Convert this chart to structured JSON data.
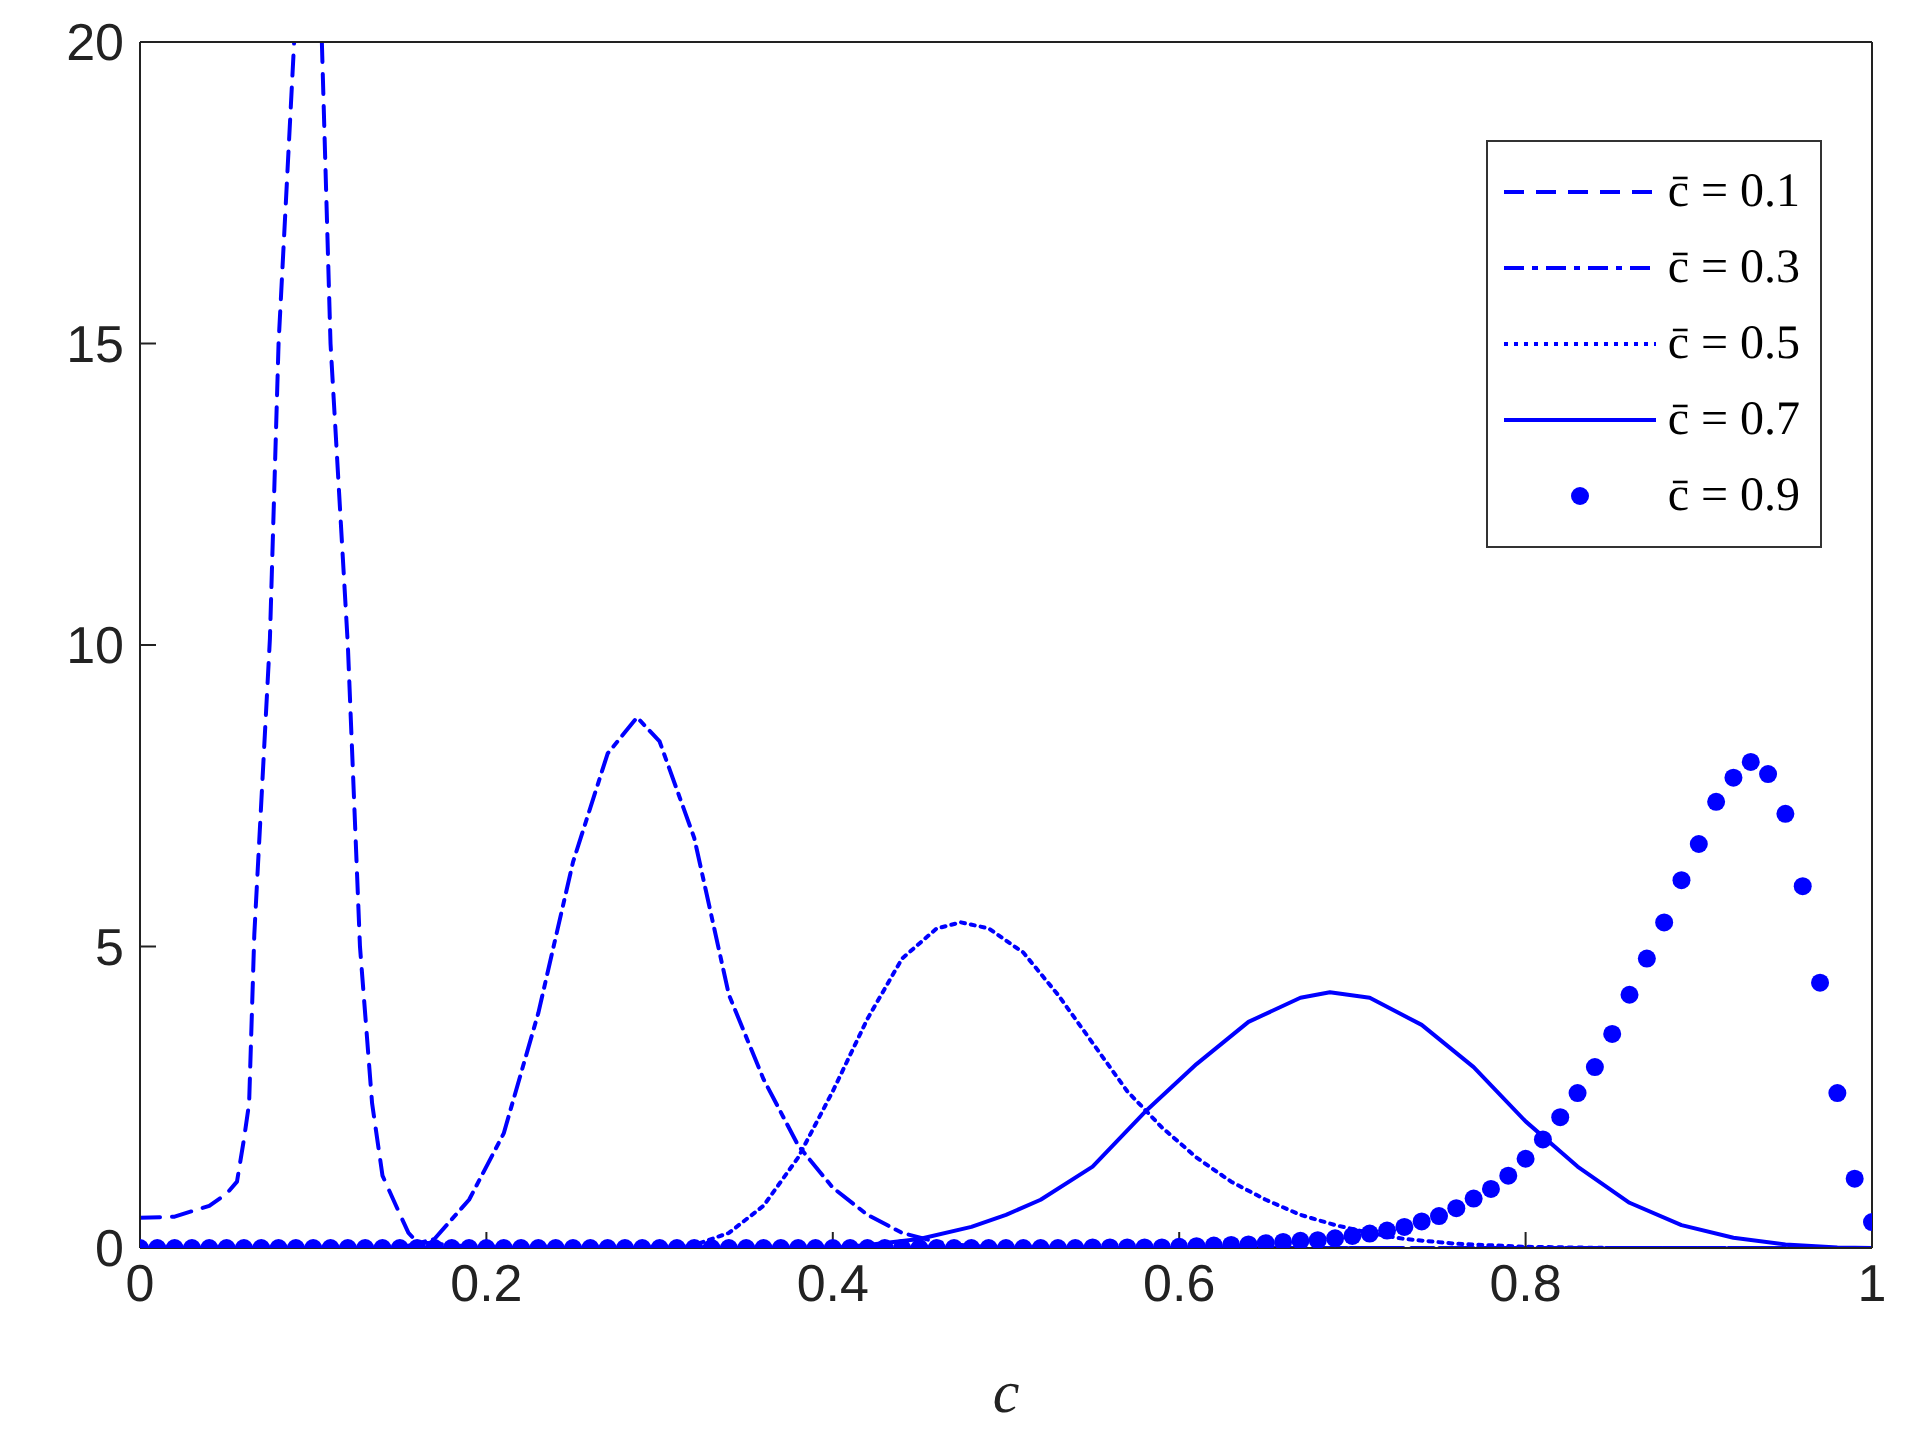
{
  "chart_data": {
    "type": "line",
    "xlabel": "c",
    "xlim": [
      0,
      1
    ],
    "ylim": [
      0,
      20
    ],
    "xticks": [
      0,
      0.2,
      0.4,
      0.6,
      0.8,
      1
    ],
    "yticks": [
      0,
      5,
      10,
      15,
      20
    ],
    "grid": false,
    "legend": "top right",
    "series": [
      {
        "name": "c̄ = 0.1",
        "color": "#0000ff",
        "line_style": "dashed",
        "marker": "none",
        "x": [
          0,
          0.02,
          0.04,
          0.05,
          0.056,
          0.06,
          0.063,
          0.066,
          0.075,
          0.08,
          0.089,
          0.097,
          0.105,
          0.11,
          0.12,
          0.127,
          0.134,
          0.14,
          0.151,
          0.155,
          0.16,
          0.2,
          0.4,
          0.6,
          0.8,
          1
        ],
        "values": [
          0.5,
          0.52,
          0.7,
          0.9,
          1.1,
          1.8,
          2.4,
          5.2,
          10.1,
          15,
          20,
          null,
          20,
          15,
          10,
          5,
          2.4,
          1.2,
          0.5,
          0.25,
          0.1,
          0,
          0,
          0,
          0,
          0
        ]
      },
      {
        "name": "c̄ = 0.3",
        "color": "#0000ff",
        "line_style": "dashdot",
        "marker": "none",
        "x": [
          0,
          0.15,
          0.17,
          0.19,
          0.21,
          0.23,
          0.25,
          0.27,
          0.287,
          0.3,
          0.32,
          0.34,
          0.36,
          0.38,
          0.4,
          0.42,
          0.44,
          0.46,
          0.48,
          0.5,
          1
        ],
        "values": [
          0,
          0,
          0.15,
          0.8,
          1.9,
          3.9,
          6.4,
          8.2,
          8.8,
          8.4,
          6.8,
          4.2,
          2.8,
          1.7,
          1,
          0.55,
          0.25,
          0.1,
          0.03,
          0,
          0
        ]
      },
      {
        "name": "c̄ = 0.5",
        "color": "#0000ff",
        "line_style": "dotted",
        "marker": "none",
        "x": [
          0,
          0.3,
          0.32,
          0.34,
          0.36,
          0.38,
          0.4,
          0.42,
          0.44,
          0.46,
          0.474,
          0.49,
          0.51,
          0.53,
          0.55,
          0.57,
          0.59,
          0.61,
          0.63,
          0.65,
          0.67,
          0.69,
          0.71,
          0.73,
          0.76,
          0.8,
          0.85,
          1
        ],
        "values": [
          0,
          0,
          0.05,
          0.25,
          0.7,
          1.5,
          2.6,
          3.8,
          4.8,
          5.3,
          5.4,
          5.3,
          4.9,
          4.2,
          3.4,
          2.6,
          2,
          1.5,
          1.1,
          0.8,
          0.55,
          0.38,
          0.25,
          0.15,
          0.07,
          0.02,
          0,
          0
        ]
      },
      {
        "name": "c̄ = 0.7",
        "color": "#0000ff",
        "line_style": "solid",
        "marker": "none",
        "x": [
          0,
          0.4,
          0.42,
          0.45,
          0.48,
          0.5,
          0.52,
          0.55,
          0.58,
          0.61,
          0.64,
          0.67,
          0.687,
          0.71,
          0.74,
          0.77,
          0.8,
          0.83,
          0.86,
          0.89,
          0.92,
          0.95,
          0.98,
          1
        ],
        "values": [
          0,
          0,
          0.05,
          0.15,
          0.35,
          0.55,
          0.8,
          1.35,
          2.25,
          3.05,
          3.75,
          4.15,
          4.24,
          4.15,
          3.7,
          3,
          2.1,
          1.35,
          0.75,
          0.38,
          0.17,
          0.06,
          0.01,
          0
        ]
      },
      {
        "name": "c̄ = 0.9",
        "color": "#0000ff",
        "type": "scatter",
        "marker": "circle",
        "x": [
          0,
          0.01,
          0.02,
          0.03,
          0.04,
          0.05,
          0.06,
          0.07,
          0.08,
          0.09,
          0.1,
          0.11,
          0.12,
          0.13,
          0.14,
          0.15,
          0.16,
          0.17,
          0.18,
          0.19,
          0.2,
          0.21,
          0.22,
          0.23,
          0.24,
          0.25,
          0.26,
          0.27,
          0.28,
          0.29,
          0.3,
          0.31,
          0.32,
          0.33,
          0.34,
          0.35,
          0.36,
          0.37,
          0.38,
          0.39,
          0.4,
          0.41,
          0.42,
          0.43,
          0.44,
          0.45,
          0.46,
          0.47,
          0.48,
          0.49,
          0.5,
          0.51,
          0.52,
          0.53,
          0.54,
          0.55,
          0.56,
          0.57,
          0.58,
          0.59,
          0.6,
          0.61,
          0.62,
          0.63,
          0.64,
          0.65,
          0.66,
          0.67,
          0.68,
          0.69,
          0.7,
          0.71,
          0.72,
          0.73,
          0.74,
          0.75,
          0.76,
          0.77,
          0.78,
          0.79,
          0.8,
          0.81,
          0.82,
          0.83,
          0.84,
          0.85,
          0.86,
          0.87,
          0.88,
          0.89,
          0.9,
          0.91,
          0.92,
          0.93,
          0.94,
          0.95,
          0.96,
          0.97,
          0.98,
          0.99,
          1
        ],
        "values": [
          0,
          0,
          0,
          0,
          0,
          0,
          0,
          0,
          0,
          0,
          0,
          0,
          0,
          0,
          0,
          0,
          0,
          0,
          0,
          0,
          0,
          0,
          0,
          0,
          0,
          0,
          0,
          0,
          0,
          0,
          0,
          0,
          0,
          0,
          0,
          0,
          0,
          0,
          0,
          0,
          0,
          0,
          0,
          0,
          0,
          0,
          0,
          0,
          0,
          0,
          0,
          0,
          0,
          0,
          0,
          0.01,
          0.01,
          0.01,
          0.01,
          0.01,
          0.02,
          0.03,
          0.04,
          0.05,
          0.06,
          0.08,
          0.1,
          0.12,
          0.13,
          0.16,
          0.2,
          0.24,
          0.29,
          0.35,
          0.44,
          0.53,
          0.66,
          0.82,
          0.98,
          1.2,
          1.48,
          1.8,
          2.17,
          2.57,
          3,
          3.55,
          4.2,
          4.8,
          5.4,
          6.1,
          6.7,
          7.4,
          7.8,
          8.06,
          7.86,
          7.2,
          6,
          4.4,
          2.57,
          1.15,
          0.43
        ]
      }
    ]
  }
}
